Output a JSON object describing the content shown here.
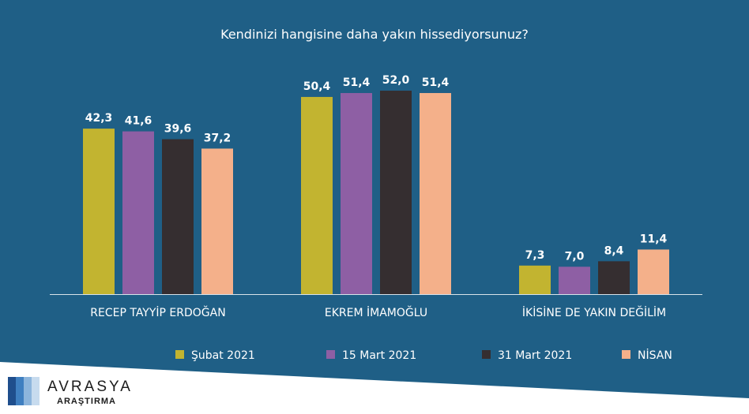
{
  "chart_data": {
    "type": "bar",
    "title": "Kendinizi hangisine daha yakın hissediyorsunuz?",
    "categories": [
      "RECEP TAYYİP ERDOĞAN",
      "EKREM İMAMOĞLU",
      "İKİSİNE DE YAKIN DEĞİLİM"
    ],
    "series": [
      {
        "name": "Şubat 2021",
        "color": "#c2b430",
        "values": [
          42.3,
          50.4,
          7.3
        ],
        "labels": [
          "42,3",
          "50,4",
          "7,3"
        ]
      },
      {
        "name": "15 Mart 2021",
        "color": "#8e5fa4",
        "values": [
          41.6,
          51.4,
          7.0
        ],
        "labels": [
          "41,6",
          "51,4",
          "7,0"
        ]
      },
      {
        "name": "31 Mart 2021",
        "color": "#352e30",
        "values": [
          39.6,
          52.0,
          8.4
        ],
        "labels": [
          "39,6",
          "52,0",
          "8,4"
        ]
      },
      {
        "name": "NİSAN",
        "color": "#f4b08a",
        "values": [
          37.2,
          51.4,
          11.4
        ],
        "labels": [
          "37,2",
          "51,4",
          "11,4"
        ]
      }
    ],
    "ylim": [
      0,
      52
    ],
    "grid": false,
    "legend_position": "bottom"
  },
  "colors": {
    "background": "#1f5f86",
    "axis": "#d8e3ea",
    "text": "#ffffff"
  },
  "branding": {
    "name": "AVRASYA",
    "sub": "ARAŞTIRMA"
  }
}
